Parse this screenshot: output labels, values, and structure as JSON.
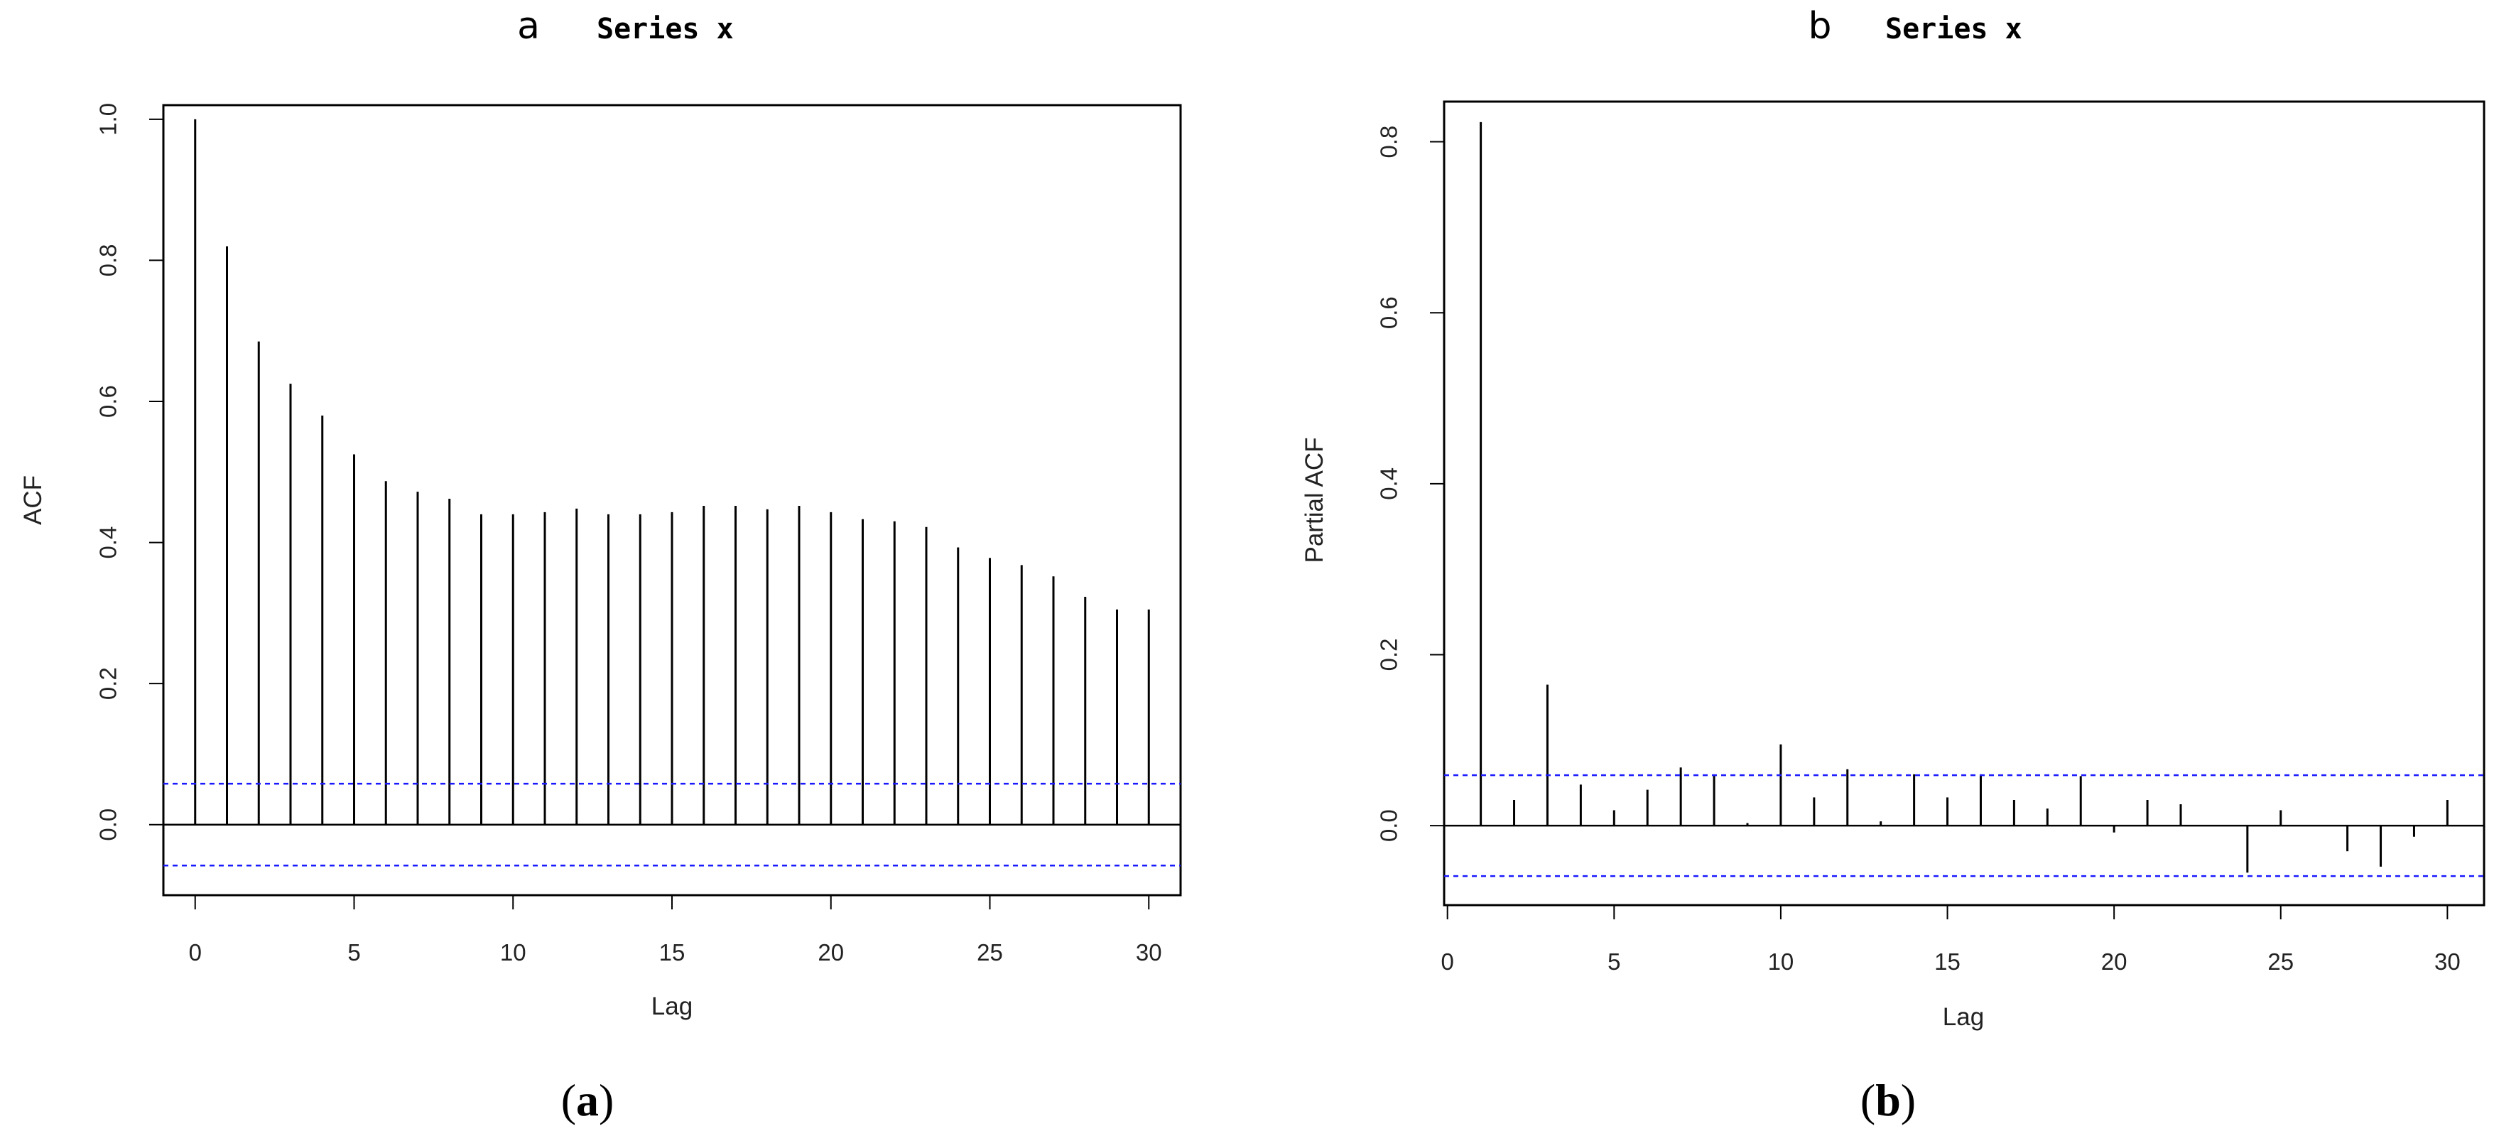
{
  "colors": {
    "bars": "#000000",
    "confidence": "#1a1aff",
    "background": "#ffffff"
  },
  "chart_data": [
    {
      "id": "acf",
      "type": "bar",
      "panel_letter": "a",
      "title": "Series x",
      "xlabel": "Lag",
      "ylabel": "ACF",
      "caption_open": "(",
      "caption_letter": "a",
      "caption_close": ")",
      "xlim": [
        -1,
        31
      ],
      "ylim": [
        -0.1,
        1.02
      ],
      "xticks": [
        0,
        5,
        10,
        15,
        20,
        25,
        30
      ],
      "yticks": [
        0.0,
        0.2,
        0.4,
        0.6,
        0.8,
        1.0
      ],
      "ytick_labels": [
        "0.0",
        "0.2",
        "0.4",
        "0.6",
        "0.8",
        "1.0"
      ],
      "confidence_bounds": [
        0.058,
        -0.058
      ],
      "lags": [
        0,
        1,
        2,
        3,
        4,
        5,
        6,
        7,
        8,
        9,
        10,
        11,
        12,
        13,
        14,
        15,
        16,
        17,
        18,
        19,
        20,
        21,
        22,
        23,
        24,
        25,
        26,
        27,
        28,
        29,
        30
      ],
      "values": [
        1.0,
        0.82,
        0.685,
        0.625,
        0.58,
        0.525,
        0.487,
        0.472,
        0.462,
        0.44,
        0.44,
        0.443,
        0.448,
        0.44,
        0.44,
        0.443,
        0.452,
        0.452,
        0.447,
        0.452,
        0.443,
        0.433,
        0.43,
        0.422,
        0.393,
        0.378,
        0.368,
        0.352,
        0.323,
        0.305,
        0.305
      ]
    },
    {
      "id": "pacf",
      "type": "bar",
      "panel_letter": "b",
      "title": "Series x",
      "xlabel": "Lag",
      "ylabel": "Partial ACF",
      "caption_open": "(",
      "caption_letter": "b",
      "caption_close": ")",
      "xlim": [
        -0.1,
        31.1
      ],
      "ylim": [
        -0.093,
        0.847
      ],
      "xticks": [
        0,
        5,
        10,
        15,
        20,
        25,
        30
      ],
      "yticks": [
        0.0,
        0.2,
        0.4,
        0.6,
        0.8
      ],
      "ytick_labels": [
        "0.0",
        "0.2",
        "0.4",
        "0.6",
        "0.8"
      ],
      "confidence_bounds": [
        0.059,
        -0.059
      ],
      "lags": [
        1,
        2,
        3,
        4,
        5,
        6,
        7,
        8,
        9,
        10,
        11,
        12,
        13,
        14,
        15,
        16,
        17,
        18,
        19,
        20,
        21,
        22,
        23,
        24,
        25,
        26,
        27,
        28,
        29,
        30
      ],
      "values": [
        0.823,
        0.03,
        0.165,
        0.048,
        0.018,
        0.042,
        0.068,
        0.06,
        0.003,
        0.095,
        0.033,
        0.066,
        0.005,
        0.06,
        0.033,
        0.06,
        0.03,
        0.02,
        0.058,
        -0.008,
        0.03,
        0.025,
        0.0,
        -0.055,
        0.018,
        0.0,
        -0.03,
        -0.048,
        -0.013,
        0.03
      ]
    }
  ]
}
